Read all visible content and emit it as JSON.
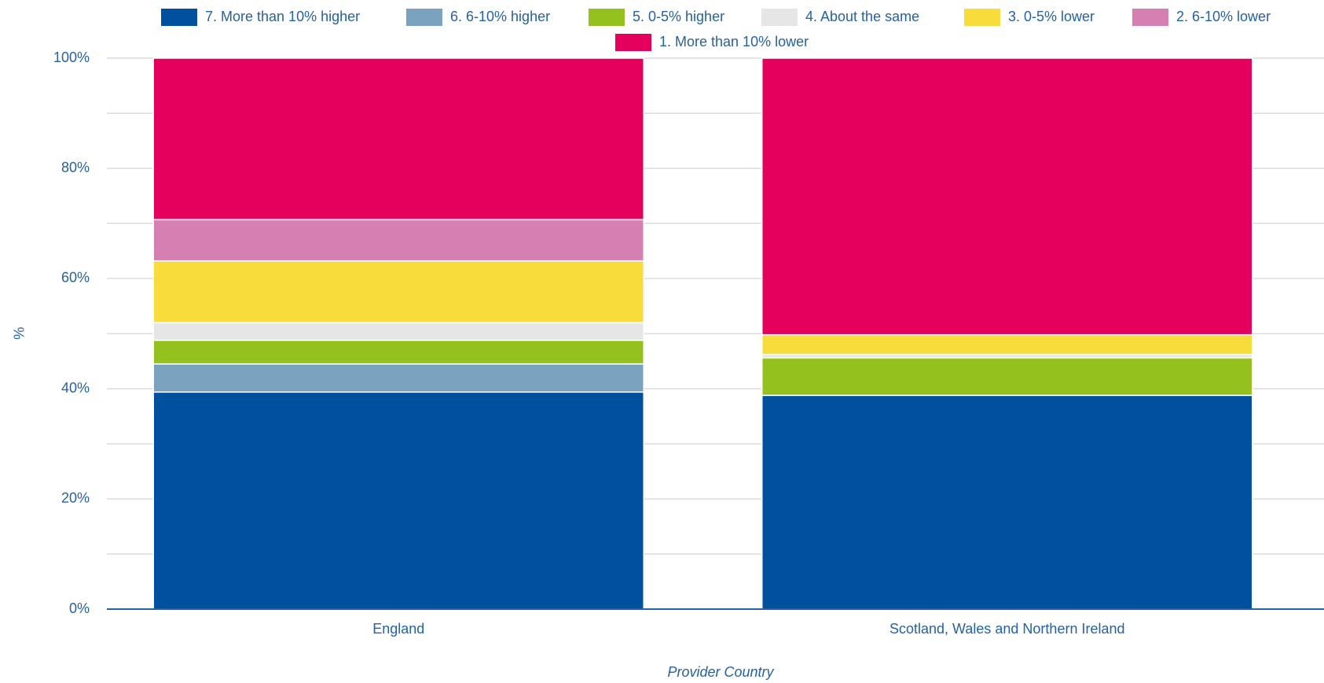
{
  "chart_data": {
    "type": "stacked_bar",
    "categories": [
      "England",
      "Scotland, Wales and Northern Ireland"
    ],
    "series": [
      {
        "name": "7. More than 10% higher",
        "color": "#0050a0",
        "values": [
          39.4,
          38.8
        ]
      },
      {
        "name": "6. 6-10% higher",
        "color": "#7ba3bf",
        "values": [
          5.1,
          0
        ]
      },
      {
        "name": "5. 0-5% higher",
        "color": "#95c11f",
        "values": [
          4.3,
          6.8
        ]
      },
      {
        "name": "4. About the same",
        "color": "#e6e6e6",
        "values": [
          3.2,
          0.6
        ]
      },
      {
        "name": "3. 0-5% lower",
        "color": "#f8dc3c",
        "values": [
          11.2,
          3.6
        ]
      },
      {
        "name": "2. 6-10% lower",
        "color": "#d57fb2",
        "values": [
          7.5,
          0
        ]
      },
      {
        "name": "1. More than 10% lower",
        "color": "#e5005e",
        "values": [
          29.3,
          50.2
        ]
      }
    ],
    "ylabel": "%",
    "xlabel": "Provider Country",
    "ylim": [
      0,
      100
    ],
    "yticks": [
      {
        "value": 0,
        "label": "0%"
      },
      {
        "value": 20,
        "label": "20%"
      },
      {
        "value": 40,
        "label": "40%"
      },
      {
        "value": 60,
        "label": "60%"
      },
      {
        "value": 80,
        "label": "80%"
      },
      {
        "value": 100,
        "label": "100%"
      }
    ],
    "minor_yticks": [
      10,
      30,
      50,
      70,
      90
    ],
    "grid": true
  }
}
